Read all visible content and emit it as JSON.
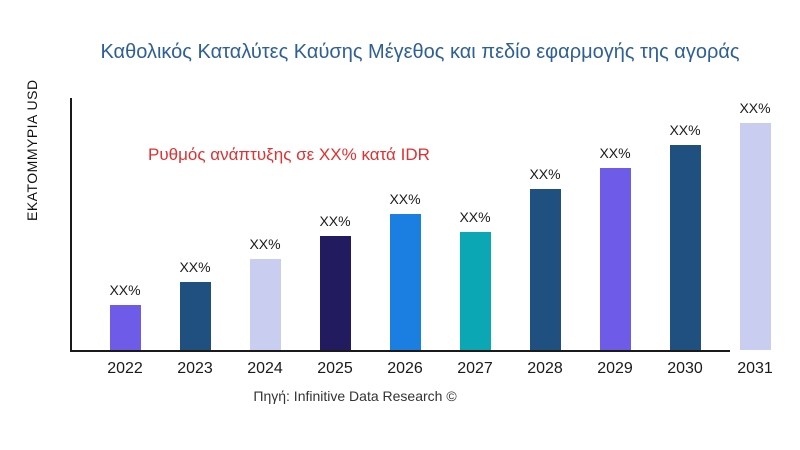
{
  "title": {
    "text": "Καθολικός Καταλύτες Καύσης Μέγεθος και πεδίο εφαρμογής της αγοράς",
    "color": "#2e6095"
  },
  "annotation": {
    "text": "Ρυθμός ανάπτυξης σε XX% κατά IDR",
    "color": "#e03030"
  },
  "y_axis_label": "ΕΚΑΤΟΜΜΥΡΙΑ USD",
  "source": "Πηγή: Infinitive Data Research ©",
  "axis_color": "#1a1a1a",
  "chart_data": {
    "type": "bar",
    "title": "Καθολικός Καταλύτες Καύσης Μέγεθος και πεδίο εφαρμογής της αγοράς",
    "xlabel": "",
    "ylabel": "ΕΚΑΤΟΜΜΥΡΙΑ USD",
    "categories": [
      "2022",
      "2023",
      "2024",
      "2025",
      "2026",
      "2027",
      "2028",
      "2029",
      "2030",
      "2031"
    ],
    "values": [
      20,
      30,
      40,
      50,
      60,
      52,
      71,
      80,
      90,
      100
    ],
    "values_note": "relative magnitudes estimated from bar heights; actual figures masked as XX% in source image",
    "value_labels": [
      "XX%",
      "XX%",
      "XX%",
      "XX%",
      "XX%",
      "XX%",
      "XX%",
      "XX%",
      "XX%",
      "XX%"
    ],
    "bar_colors": [
      "#6e5ce8",
      "#1f5080",
      "#c9cdf0",
      "#221b60",
      "#1a7fe0",
      "#0ba7b4",
      "#1f5080",
      "#6e5ce8",
      "#1f5080",
      "#c9cdf0"
    ],
    "ylim": [
      0,
      110
    ],
    "grid": false,
    "legend": "none",
    "annotation": "Ρυθμός ανάπτυξης σε XX% κατά IDR"
  }
}
